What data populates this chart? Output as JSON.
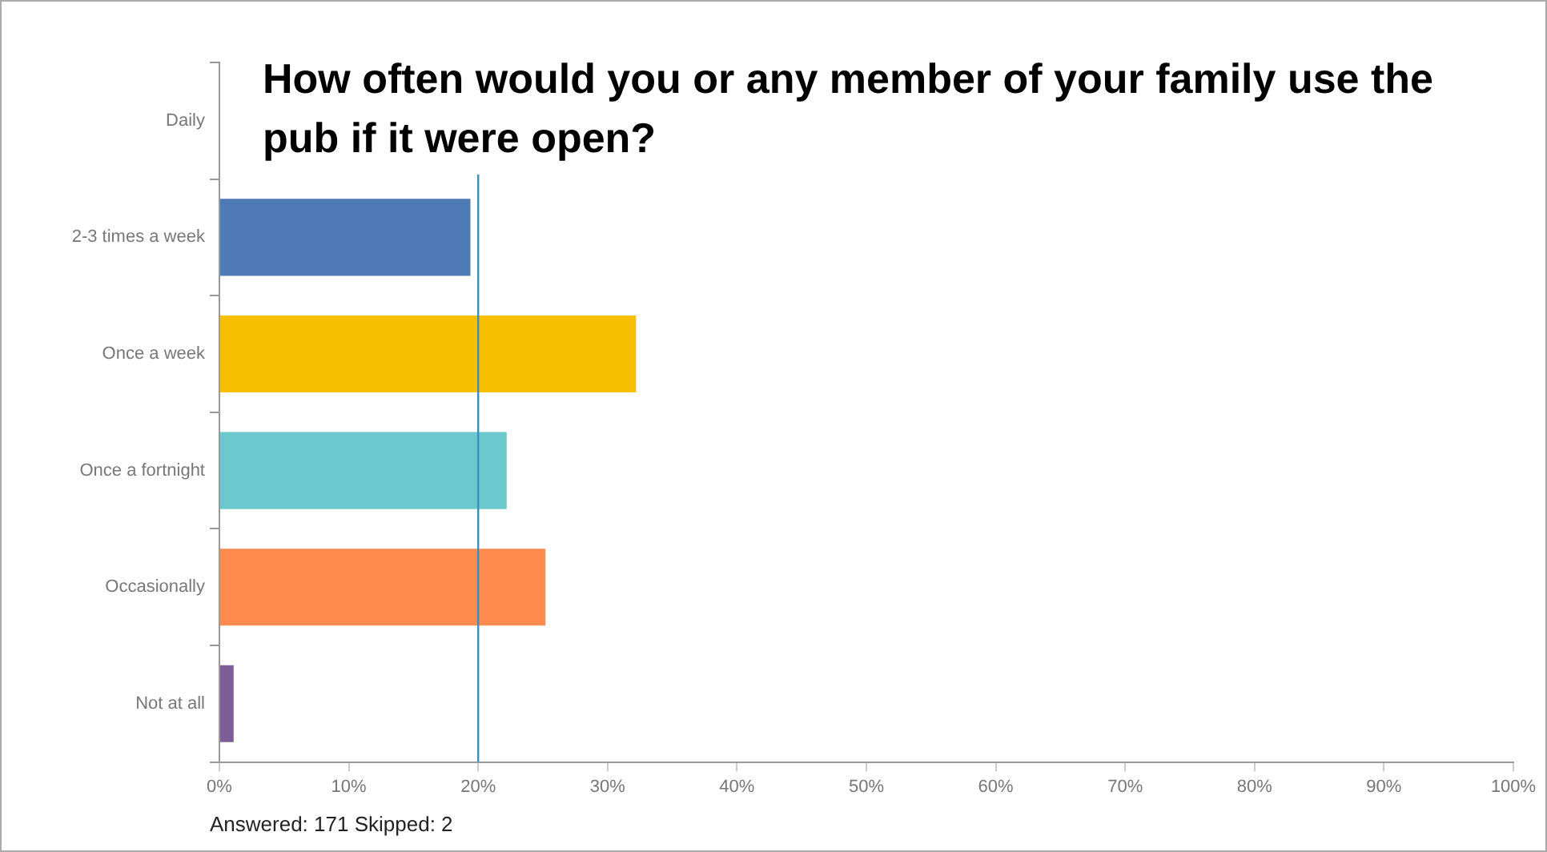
{
  "chart_data": {
    "type": "bar",
    "orientation": "horizontal",
    "title": "How often would you or any member of your family use the pub if it were open?",
    "categories": [
      "Daily",
      "2-3 times a week",
      "Once a week",
      "Once a fortnight",
      "Occasionally",
      "Not at all"
    ],
    "values": [
      0,
      19.4,
      32.2,
      22.2,
      25.2,
      1.1
    ],
    "colors": [
      "#4e7ab5",
      "#4e7ab5",
      "#f8bf00",
      "#6cc8cc",
      "#ff8b4f",
      "#7e5c96"
    ],
    "xlim": [
      0,
      100
    ],
    "xticks": [
      {
        "value": 0,
        "label": "0%"
      },
      {
        "value": 10,
        "label": "10%"
      },
      {
        "value": 20,
        "label": "20%"
      },
      {
        "value": 30,
        "label": "30%"
      },
      {
        "value": 40,
        "label": "40%"
      },
      {
        "value": 50,
        "label": "50%"
      },
      {
        "value": 60,
        "label": "60%"
      },
      {
        "value": 70,
        "label": "70%"
      },
      {
        "value": 80,
        "label": "80%"
      },
      {
        "value": 90,
        "label": "90%"
      },
      {
        "value": 100,
        "label": "100%"
      }
    ],
    "ref_lines": [
      {
        "axis": "x",
        "value": 20,
        "color": "#3b8fc0"
      }
    ],
    "grid": false,
    "legend": false,
    "annotations": [
      "Answered: 171  Skipped: 2"
    ]
  }
}
